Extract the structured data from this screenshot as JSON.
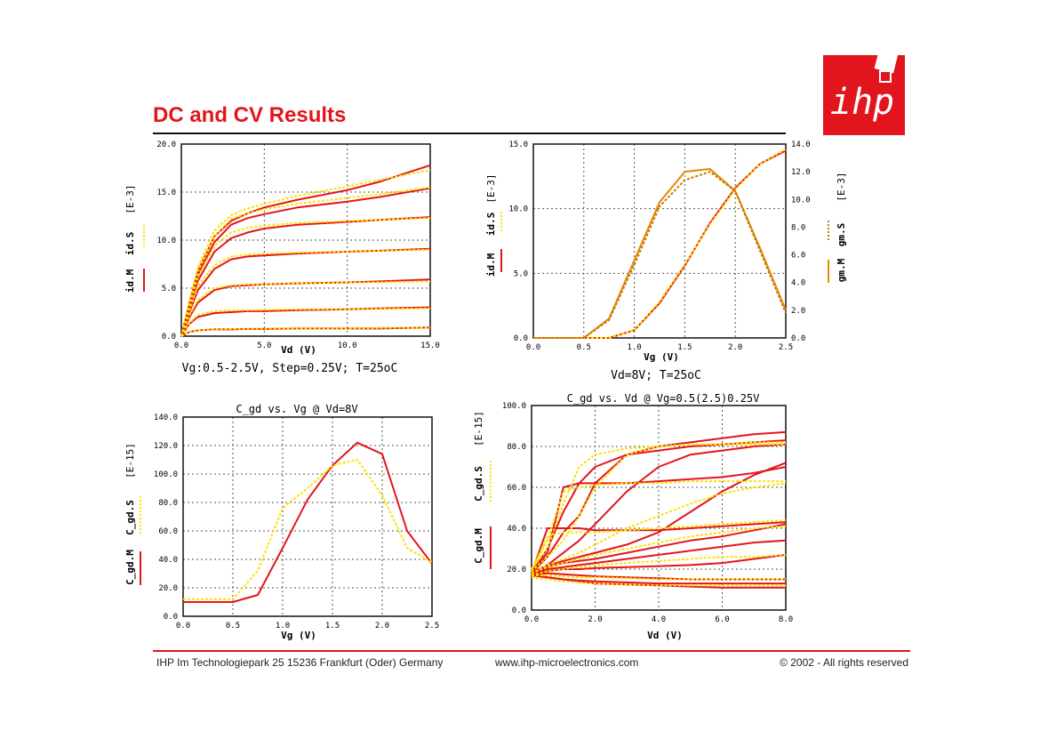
{
  "title": "DC and CV Results",
  "brand": {
    "logo_text": "ihp",
    "accent": "#e3151c"
  },
  "footer": {
    "address": "IHP  Im Technologiepark 25  15236 Frankfurt (Oder) Germany",
    "url": "www.ihp-microelectronics.com",
    "copyright": "© 2002 - All rights reserved"
  },
  "colors": {
    "measured": "#e3151c",
    "simulated": "#ffe100",
    "gm_measured": "#e38a00",
    "gm_simulated": "#c87800"
  },
  "chart_data": [
    {
      "type": "line",
      "xlabel": "Vd (V)",
      "ylabel_axis": "[E-3]",
      "legend": [
        "id.M",
        "id.S"
      ],
      "caption": "Vg:0.5-2.5V, Step=0.25V; T=25oC",
      "xlim": [
        0,
        15
      ],
      "ylim": [
        0,
        20
      ],
      "xticks": [
        "0.0",
        "5.0",
        "10.0",
        "15.0"
      ],
      "yticks": [
        "0.0",
        "5.0",
        "10.0",
        "15.0",
        "20.0"
      ],
      "x": [
        0,
        0.5,
        1,
        2,
        3,
        4,
        5,
        7,
        10,
        12,
        15
      ],
      "series": [
        {
          "name": "id.M",
          "values": [
            0,
            0.45,
            0.6,
            0.7,
            0.7,
            0.75,
            0.75,
            0.8,
            0.8,
            0.8,
            0.9
          ]
        },
        {
          "name": "id.M",
          "values": [
            0,
            1.3,
            2.0,
            2.4,
            2.5,
            2.6,
            2.6,
            2.7,
            2.8,
            2.9,
            3.0
          ]
        },
        {
          "name": "id.M",
          "values": [
            0,
            2.0,
            3.5,
            4.8,
            5.2,
            5.3,
            5.4,
            5.5,
            5.6,
            5.7,
            5.9
          ]
        },
        {
          "name": "id.M",
          "values": [
            0,
            2.6,
            4.8,
            7.0,
            8.0,
            8.3,
            8.4,
            8.6,
            8.8,
            8.9,
            9.1
          ]
        },
        {
          "name": "id.M",
          "values": [
            0,
            3.0,
            5.8,
            8.8,
            10.2,
            10.8,
            11.2,
            11.6,
            11.9,
            12.1,
            12.4
          ]
        },
        {
          "name": "id.M",
          "values": [
            0,
            3.3,
            6.4,
            9.8,
            11.6,
            12.3,
            12.7,
            13.4,
            14.0,
            14.5,
            15.4
          ]
        },
        {
          "name": "id.M",
          "values": [
            0,
            3.5,
            6.8,
            10.4,
            12.0,
            12.8,
            13.4,
            14.2,
            15.2,
            16.1,
            17.8
          ]
        },
        {
          "name": "id.S",
          "values": [
            0,
            0.45,
            0.6,
            0.7,
            0.75,
            0.75,
            0.8,
            0.8,
            0.8,
            0.85,
            0.9
          ]
        },
        {
          "name": "id.S",
          "values": [
            0,
            1.4,
            2.2,
            2.6,
            2.7,
            2.7,
            2.75,
            2.8,
            2.8,
            2.85,
            2.9
          ]
        },
        {
          "name": "id.S",
          "values": [
            0,
            2.2,
            3.8,
            5.0,
            5.3,
            5.4,
            5.4,
            5.5,
            5.6,
            5.6,
            5.7
          ]
        },
        {
          "name": "id.S",
          "values": [
            0,
            2.8,
            5.2,
            7.4,
            8.3,
            8.5,
            8.6,
            8.7,
            8.8,
            8.9,
            9.0
          ]
        },
        {
          "name": "id.S",
          "values": [
            0,
            3.2,
            6.2,
            9.4,
            10.8,
            11.3,
            11.5,
            11.8,
            12.0,
            12.1,
            12.3
          ]
        },
        {
          "name": "id.S",
          "values": [
            0,
            3.5,
            6.8,
            10.4,
            12.2,
            12.8,
            13.2,
            13.8,
            14.4,
            14.8,
            15.5
          ]
        },
        {
          "name": "id.S",
          "values": [
            0,
            3.7,
            7.2,
            11.0,
            12.6,
            13.3,
            13.8,
            14.6,
            15.6,
            16.3,
            17.3
          ]
        }
      ]
    },
    {
      "type": "line",
      "xlabel": "Vg (V)",
      "ylabel_axis": "[E-3]",
      "y2label_axis": "[E-3]",
      "legend": [
        "id.M",
        "id.S",
        "gm.M",
        "gm.S"
      ],
      "caption": "Vd=8V; T=25oC",
      "xlim": [
        0,
        2.5
      ],
      "ylim": [
        0,
        15
      ],
      "y2lim": [
        0,
        14
      ],
      "xticks": [
        "0.0",
        "0.5",
        "1.0",
        "1.5",
        "2.0",
        "2.5"
      ],
      "yticks": [
        "0.0",
        "5.0",
        "10.0",
        "15.0"
      ],
      "y2ticks": [
        "0.0",
        "2.0",
        "4.0",
        "6.0",
        "8.0",
        "10.0",
        "12.0",
        "14.0"
      ],
      "x": [
        0,
        0.25,
        0.5,
        0.75,
        1.0,
        1.25,
        1.5,
        1.75,
        2.0,
        2.25,
        2.5
      ],
      "series": [
        {
          "name": "id.M",
          "values": [
            0,
            0,
            0,
            0,
            0.6,
            2.7,
            5.6,
            8.9,
            11.6,
            13.5,
            14.5
          ]
        },
        {
          "name": "id.S",
          "values": [
            0,
            0,
            0,
            0,
            0.6,
            2.8,
            5.7,
            8.8,
            11.5,
            13.5,
            14.6
          ]
        },
        {
          "name": "gm.M",
          "axis": "y2",
          "values": [
            0,
            0,
            0,
            1.4,
            5.6,
            9.8,
            12.0,
            12.2,
            10.6,
            6.4,
            2.0
          ]
        },
        {
          "name": "gm.S",
          "axis": "y2",
          "values": [
            0,
            0,
            0,
            1.3,
            5.3,
            9.5,
            11.4,
            12.0,
            10.6,
            6.2,
            1.8
          ]
        }
      ]
    },
    {
      "type": "line",
      "title": "C_gd vs. Vg @ Vd=8V",
      "xlabel": "Vg (V)",
      "ylabel_axis": "[E-15]",
      "legend": [
        "C_gd.M",
        "C_gd.S"
      ],
      "xlim": [
        0,
        2.5
      ],
      "ylim": [
        0,
        140
      ],
      "xticks": [
        "0.0",
        "0.5",
        "1.0",
        "1.5",
        "2.0",
        "2.5"
      ],
      "yticks": [
        "0.0",
        "20.0",
        "40.0",
        "60.0",
        "80.0",
        "100.0",
        "120.0",
        "140.0"
      ],
      "x": [
        0,
        0.25,
        0.5,
        0.75,
        1.0,
        1.25,
        1.5,
        1.75,
        2.0,
        2.25,
        2.5
      ],
      "series": [
        {
          "name": "C_gd.M",
          "values": [
            10,
            10,
            10,
            15,
            48,
            82,
            106,
            122,
            114,
            60,
            37
          ]
        },
        {
          "name": "C_gd.S",
          "values": [
            12,
            12,
            12,
            32,
            76,
            90,
            106,
            110,
            85,
            48,
            38
          ]
        }
      ]
    },
    {
      "type": "line",
      "title": "C_gd vs. Vd @ Vg=0.5(2.5)0.25V",
      "xlabel": "Vd (V)",
      "ylabel_axis": "[E-15]",
      "legend": [
        "C_gd.M",
        "C_gd.S"
      ],
      "xlim": [
        0,
        8
      ],
      "ylim": [
        0,
        100
      ],
      "xticks": [
        "0.0",
        "2.0",
        "4.0",
        "6.0",
        "8.0"
      ],
      "yticks": [
        "0.0",
        "20.0",
        "40.0",
        "60.0",
        "80.0",
        "100.0"
      ],
      "x": [
        0,
        0.5,
        1,
        1.5,
        2,
        3,
        4,
        5,
        6,
        7,
        8
      ],
      "series": [
        {
          "name": "C_gd.M",
          "values": [
            17,
            16,
            15,
            14.5,
            14,
            13.5,
            13,
            13,
            13,
            13,
            13
          ]
        },
        {
          "name": "C_gd.M",
          "values": [
            17,
            16,
            15,
            14,
            13,
            12.5,
            12,
            11.5,
            11,
            11,
            11
          ]
        },
        {
          "name": "C_gd.M",
          "values": [
            17,
            18,
            17.5,
            17,
            16.5,
            16,
            15.5,
            15,
            15,
            15,
            15
          ]
        },
        {
          "name": "C_gd.M",
          "values": [
            17,
            19,
            20,
            20,
            20.5,
            21,
            21.5,
            22,
            23,
            25,
            27
          ]
        },
        {
          "name": "C_gd.M",
          "values": [
            17,
            20,
            21,
            22,
            23,
            25,
            27,
            29,
            31,
            33,
            34
          ]
        },
        {
          "name": "C_gd.M",
          "values": [
            17,
            21,
            23,
            24,
            25,
            28,
            31,
            34,
            36,
            39,
            42
          ]
        },
        {
          "name": "C_gd.M",
          "values": [
            17,
            22,
            24,
            26,
            28,
            32,
            38,
            48,
            58,
            66,
            72
          ]
        },
        {
          "name": "C_gd.M",
          "values": [
            18,
            40,
            40,
            40,
            39,
            39,
            39,
            40,
            41,
            42,
            43
          ]
        },
        {
          "name": "C_gd.M",
          "values": [
            18,
            28,
            60,
            62,
            62,
            62,
            63,
            64,
            65,
            67,
            70
          ]
        },
        {
          "name": "C_gd.M",
          "values": [
            18,
            30,
            48,
            62,
            70,
            76,
            78,
            80,
            81,
            82,
            83
          ]
        },
        {
          "name": "C_gd.M",
          "values": [
            18,
            26,
            38,
            46,
            62,
            76,
            80,
            82,
            84,
            86,
            87
          ]
        },
        {
          "name": "C_gd.M",
          "values": [
            18,
            22,
            28,
            34,
            42,
            58,
            70,
            76,
            78,
            80,
            81
          ]
        },
        {
          "name": "C_gd.S",
          "values": [
            16,
            15,
            14,
            13.5,
            13,
            12.5,
            12,
            12,
            12,
            12,
            12
          ]
        },
        {
          "name": "C_gd.S",
          "values": [
            17,
            17,
            16.5,
            16,
            16,
            15.5,
            15,
            15,
            15,
            15,
            15
          ]
        },
        {
          "name": "C_gd.S",
          "values": [
            17,
            19,
            20,
            21,
            22,
            23,
            24,
            25,
            26,
            26,
            27
          ]
        },
        {
          "name": "C_gd.S",
          "values": [
            18,
            21,
            23,
            25,
            27,
            30,
            33,
            36,
            38,
            40,
            41
          ]
        },
        {
          "name": "C_gd.S",
          "values": [
            18,
            22,
            25,
            28,
            32,
            40,
            46,
            52,
            57,
            60,
            62
          ]
        },
        {
          "name": "C_gd.S",
          "values": [
            19,
            36,
            38,
            38,
            38,
            39,
            40,
            41,
            42,
            43,
            44
          ]
        },
        {
          "name": "C_gd.S",
          "values": [
            20,
            34,
            58,
            60,
            61,
            62,
            62,
            63,
            63,
            63,
            63
          ]
        },
        {
          "name": "C_gd.S",
          "values": [
            20,
            30,
            52,
            70,
            76,
            79,
            80,
            81,
            81,
            82,
            82
          ]
        },
        {
          "name": "C_gd.S",
          "values": [
            19,
            26,
            34,
            46,
            60,
            76,
            80,
            81,
            81,
            81,
            81
          ]
        }
      ]
    }
  ]
}
